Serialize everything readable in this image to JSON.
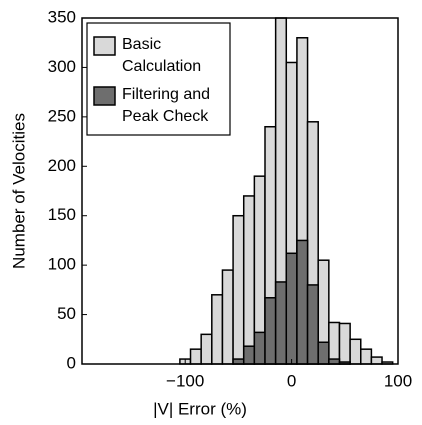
{
  "chart_data": {
    "type": "histogram",
    "x_label": "|V| Error (%)",
    "y_label": "Number of Velocities",
    "bins": [
      -105,
      -95,
      -85,
      -75,
      -65,
      -55,
      -45,
      -35,
      -25,
      -15,
      -5,
      5,
      15,
      25,
      35,
      45,
      55,
      65,
      75,
      85,
      95
    ],
    "series": [
      {
        "name": "Basic Calculation",
        "color": "#d9d9d9",
        "values": [
          5,
          15,
          30,
          70,
          95,
          150,
          170,
          190,
          240,
          350,
          305,
          330,
          245,
          105,
          42,
          41,
          25,
          15,
          7,
          2
        ]
      },
      {
        "name": "Filtering and Peak Check",
        "color": "#6e6e6e",
        "values": [
          0,
          0,
          0,
          0,
          0,
          5,
          18,
          32,
          67,
          83,
          112,
          125,
          80,
          22,
          5,
          2,
          0,
          0,
          0,
          0
        ]
      }
    ],
    "xlim": [
      -197,
      100
    ],
    "xticks": [
      {
        "value": -100,
        "label": "−100"
      },
      0,
      100
    ],
    "ylim": [
      0,
      350
    ],
    "yticks": [
      0,
      50,
      100,
      150,
      200,
      250,
      300,
      350
    ],
    "legend": "upper left"
  }
}
